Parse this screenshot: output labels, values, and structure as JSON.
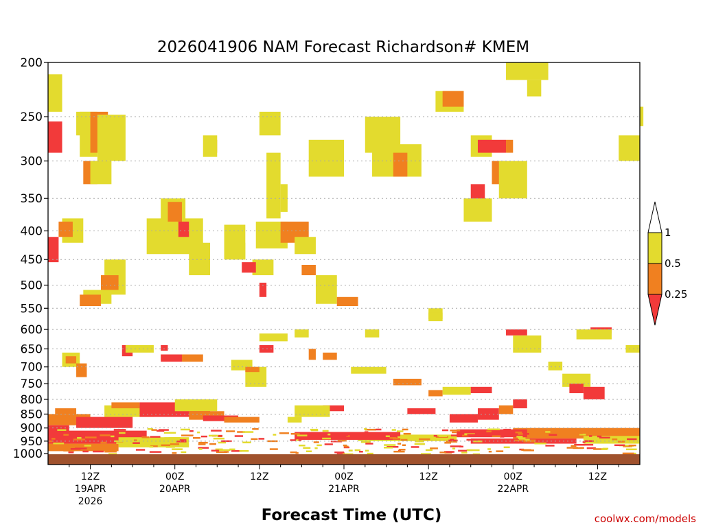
{
  "chart_data": {
    "type": "heatmap",
    "title": "2026041906 NAM Forecast Richardson# KMEM",
    "xlabel": "Forecast Time (UTC)",
    "ylabel": "",
    "watermark": "coolwx.com/models",
    "y_axis": {
      "scale": "log-pressure",
      "inverted": true,
      "range_hPa": [
        200,
        1000
      ],
      "ticks": [
        "200",
        "250",
        "300",
        "350",
        "400",
        "450",
        "500",
        "550",
        "600",
        "650",
        "700",
        "750",
        "800",
        "850",
        "900",
        "950",
        "1000"
      ]
    },
    "x_axis": {
      "range_hours": [
        0,
        84
      ],
      "ticks": [
        {
          "hour": 6,
          "lines": [
            "12Z",
            "19APR",
            "2026"
          ]
        },
        {
          "hour": 18,
          "lines": [
            "00Z",
            "20APR"
          ]
        },
        {
          "hour": 30,
          "lines": [
            "12Z"
          ]
        },
        {
          "hour": 42,
          "lines": [
            "00Z",
            "21APR"
          ]
        },
        {
          "hour": 54,
          "lines": [
            "12Z"
          ]
        },
        {
          "hour": 66,
          "lines": [
            "00Z",
            "22APR"
          ]
        },
        {
          "hour": 78,
          "lines": [
            "12Z"
          ]
        }
      ]
    },
    "color_scale": {
      "bins": [
        {
          "label": "< 0.25",
          "color": "#f23a3a"
        },
        {
          "label": "0.25 – 0.5",
          "color": "#f08020"
        },
        {
          "label": "0.5 – 1",
          "color": "#e3db2e"
        },
        {
          "label": "> 1",
          "color": "#ffffff"
        }
      ],
      "legend_labels": [
        "1",
        "0.5",
        "0.25"
      ]
    },
    "ground_color": "#a0522d",
    "regions": [
      {
        "h": [
          0,
          2
        ],
        "p": [
          255,
          290
        ],
        "c": "r"
      },
      {
        "h": [
          0,
          2
        ],
        "p": [
          210,
          245
        ],
        "c": "y"
      },
      {
        "h": [
          0,
          1.5
        ],
        "p": [
          410,
          455
        ],
        "c": "r"
      },
      {
        "h": [
          4,
          6
        ],
        "p": [
          245,
          270
        ],
        "c": "y"
      },
      {
        "h": [
          4.5,
          7
        ],
        "p": [
          245,
          295
        ],
        "c": "y"
      },
      {
        "h": [
          5,
          7
        ],
        "p": [
          300,
          330
        ],
        "c": "o"
      },
      {
        "h": [
          6,
          8.5
        ],
        "p": [
          245,
          290
        ],
        "c": "o"
      },
      {
        "h": [
          7,
          11
        ],
        "p": [
          248,
          300
        ],
        "c": "y"
      },
      {
        "h": [
          6,
          9
        ],
        "p": [
          300,
          330
        ],
        "c": "y"
      },
      {
        "h": [
          2,
          5
        ],
        "p": [
          380,
          420
        ],
        "c": "y"
      },
      {
        "h": [
          1.5,
          3.5
        ],
        "p": [
          385,
          410
        ],
        "c": "o"
      },
      {
        "h": [
          8,
          11
        ],
        "p": [
          450,
          520
        ],
        "c": "y"
      },
      {
        "h": [
          7.5,
          10
        ],
        "p": [
          480,
          510
        ],
        "c": "o"
      },
      {
        "h": [
          5,
          9
        ],
        "p": [
          510,
          540
        ],
        "c": "y"
      },
      {
        "h": [
          4.5,
          7.5
        ],
        "p": [
          520,
          545
        ],
        "c": "o"
      },
      {
        "h": [
          2,
          4.5
        ],
        "p": [
          660,
          700
        ],
        "c": "y"
      },
      {
        "h": [
          2.5,
          4
        ],
        "p": [
          670,
          690
        ],
        "c": "o"
      },
      {
        "h": [
          4,
          5.5
        ],
        "p": [
          690,
          730
        ],
        "c": "o"
      },
      {
        "h": [
          10.5,
          12
        ],
        "p": [
          640,
          670
        ],
        "c": "r"
      },
      {
        "h": [
          11,
          15
        ],
        "p": [
          640,
          660
        ],
        "c": "y"
      },
      {
        "h": [
          16,
          17
        ],
        "p": [
          640,
          655
        ],
        "c": "r"
      },
      {
        "h": [
          16,
          21
        ],
        "p": [
          665,
          680
        ],
        "c": "y"
      },
      {
        "h": [
          16,
          19.5
        ],
        "p": [
          665,
          685
        ],
        "c": "r"
      },
      {
        "h": [
          19,
          22
        ],
        "p": [
          665,
          685
        ],
        "c": "o"
      },
      {
        "h": [
          14,
          22
        ],
        "p": [
          380,
          440
        ],
        "c": "y"
      },
      {
        "h": [
          16,
          19.5
        ],
        "p": [
          350,
          400
        ],
        "c": "y"
      },
      {
        "h": [
          17,
          19
        ],
        "p": [
          355,
          385
        ],
        "c": "o"
      },
      {
        "h": [
          18.5,
          20
        ],
        "p": [
          385,
          410
        ],
        "c": "r"
      },
      {
        "h": [
          20,
          23
        ],
        "p": [
          420,
          480
        ],
        "c": "y"
      },
      {
        "h": [
          23,
          24
        ],
        "p": [
          275,
          290
        ],
        "c": "o"
      },
      {
        "h": [
          22,
          24
        ],
        "p": [
          270,
          295
        ],
        "c": "y"
      },
      {
        "h": [
          25,
          28
        ],
        "p": [
          390,
          450
        ],
        "c": "y"
      },
      {
        "h": [
          26,
          28
        ],
        "p": [
          420,
          450
        ],
        "c": "y"
      },
      {
        "h": [
          29,
          32
        ],
        "p": [
          450,
          480
        ],
        "c": "y"
      },
      {
        "h": [
          27.5,
          29.5
        ],
        "p": [
          455,
          475
        ],
        "c": "r"
      },
      {
        "h": [
          30,
          31
        ],
        "p": [
          495,
          525
        ],
        "c": "r"
      },
      {
        "h": [
          29.5,
          34
        ],
        "p": [
          385,
          430
        ],
        "c": "y"
      },
      {
        "h": [
          33,
          37
        ],
        "p": [
          385,
          420
        ],
        "c": "o"
      },
      {
        "h": [
          35,
          38
        ],
        "p": [
          410,
          440
        ],
        "c": "y"
      },
      {
        "h": [
          36,
          38
        ],
        "p": [
          460,
          480
        ],
        "c": "o"
      },
      {
        "h": [
          38,
          41
        ],
        "p": [
          480,
          540
        ],
        "c": "y"
      },
      {
        "h": [
          41,
          44
        ],
        "p": [
          525,
          545
        ],
        "c": "o"
      },
      {
        "h": [
          30,
          33
        ],
        "p": [
          245,
          270
        ],
        "c": "y"
      },
      {
        "h": [
          31,
          33
        ],
        "p": [
          290,
          380
        ],
        "c": "y"
      },
      {
        "h": [
          33,
          34
        ],
        "p": [
          330,
          370
        ],
        "c": "y"
      },
      {
        "h": [
          37,
          42
        ],
        "p": [
          275,
          320
        ],
        "c": "y"
      },
      {
        "h": [
          45,
          50
        ],
        "p": [
          250,
          290
        ],
        "c": "y"
      },
      {
        "h": [
          46,
          53
        ],
        "p": [
          280,
          320
        ],
        "c": "y"
      },
      {
        "h": [
          49,
          51
        ],
        "p": [
          290,
          320
        ],
        "c": "o"
      },
      {
        "h": [
          55,
          59
        ],
        "p": [
          225,
          245
        ],
        "c": "y"
      },
      {
        "h": [
          56,
          59
        ],
        "p": [
          225,
          240
        ],
        "c": "o"
      },
      {
        "h": [
          60,
          63
        ],
        "p": [
          270,
          295
        ],
        "c": "y"
      },
      {
        "h": [
          61,
          65
        ],
        "p": [
          275,
          290
        ],
        "c": "r"
      },
      {
        "h": [
          65,
          66
        ],
        "p": [
          275,
          290
        ],
        "c": "o"
      },
      {
        "h": [
          60,
          62
        ],
        "p": [
          330,
          370
        ],
        "c": "r"
      },
      {
        "h": [
          59,
          63
        ],
        "p": [
          350,
          385
        ],
        "c": "y"
      },
      {
        "h": [
          63,
          65
        ],
        "p": [
          300,
          330
        ],
        "c": "o"
      },
      {
        "h": [
          64,
          68
        ],
        "p": [
          300,
          350
        ],
        "c": "y"
      },
      {
        "h": [
          65,
          71
        ],
        "p": [
          200,
          215
        ],
        "c": "y"
      },
      {
        "h": [
          68,
          70
        ],
        "p": [
          215,
          230
        ],
        "c": "y"
      },
      {
        "h": [
          82,
          84
        ],
        "p": [
          280,
          295
        ],
        "c": "o"
      },
      {
        "h": [
          81,
          84
        ],
        "p": [
          270,
          300
        ],
        "c": "y"
      },
      {
        "h": [
          84,
          84
        ],
        "p": [
          240,
          260
        ],
        "c": "y"
      },
      {
        "h": [
          65,
          68
        ],
        "p": [
          600,
          615
        ],
        "c": "r"
      },
      {
        "h": [
          66,
          70
        ],
        "p": [
          615,
          660
        ],
        "c": "y"
      },
      {
        "h": [
          71,
          73
        ],
        "p": [
          685,
          710
        ],
        "c": "y"
      },
      {
        "h": [
          73,
          77
        ],
        "p": [
          720,
          760
        ],
        "c": "y"
      },
      {
        "h": [
          74,
          76
        ],
        "p": [
          750,
          780
        ],
        "c": "r"
      },
      {
        "h": [
          76,
          79
        ],
        "p": [
          760,
          800
        ],
        "c": "r"
      },
      {
        "h": [
          77,
          80
        ],
        "p": [
          595,
          610
        ],
        "c": "r"
      },
      {
        "h": [
          75,
          80
        ],
        "p": [
          600,
          625
        ],
        "c": "y"
      },
      {
        "h": [
          82,
          84
        ],
        "p": [
          640,
          660
        ],
        "c": "y"
      },
      {
        "h": [
          43,
          48
        ],
        "p": [
          700,
          720
        ],
        "c": "y"
      },
      {
        "h": [
          49,
          53
        ],
        "p": [
          735,
          755
        ],
        "c": "o"
      },
      {
        "h": [
          54,
          56
        ],
        "p": [
          770,
          790
        ],
        "c": "o"
      },
      {
        "h": [
          56,
          60
        ],
        "p": [
          760,
          785
        ],
        "c": "y"
      },
      {
        "h": [
          60,
          63
        ],
        "p": [
          760,
          780
        ],
        "c": "r"
      },
      {
        "h": [
          54,
          56
        ],
        "p": [
          550,
          575
        ],
        "c": "y"
      },
      {
        "h": [
          39,
          42
        ],
        "p": [
          820,
          840
        ],
        "c": "r"
      },
      {
        "h": [
          35,
          40
        ],
        "p": [
          820,
          860
        ],
        "c": "y"
      },
      {
        "h": [
          34,
          36
        ],
        "p": [
          860,
          880
        ],
        "c": "y"
      },
      {
        "h": [
          51,
          55
        ],
        "p": [
          830,
          850
        ],
        "c": "r"
      },
      {
        "h": [
          57,
          61
        ],
        "p": [
          850,
          880
        ],
        "c": "r"
      },
      {
        "h": [
          61,
          64
        ],
        "p": [
          830,
          870
        ],
        "c": "r"
      },
      {
        "h": [
          64,
          66
        ],
        "p": [
          820,
          850
        ],
        "c": "o"
      },
      {
        "h": [
          66,
          68
        ],
        "p": [
          800,
          830
        ],
        "c": "r"
      },
      {
        "h": [
          28,
          31
        ],
        "p": [
          700,
          760
        ],
        "c": "y"
      },
      {
        "h": [
          26,
          29
        ],
        "p": [
          680,
          710
        ],
        "c": "y"
      },
      {
        "h": [
          28,
          30
        ],
        "p": [
          700,
          715
        ],
        "c": "o"
      },
      {
        "h": [
          30,
          32
        ],
        "p": [
          640,
          660
        ],
        "c": "r"
      },
      {
        "h": [
          30,
          34
        ],
        "p": [
          610,
          630
        ],
        "c": "y"
      },
      {
        "h": [
          35,
          37
        ],
        "p": [
          600,
          620
        ],
        "c": "y"
      },
      {
        "h": [
          37,
          38
        ],
        "p": [
          650,
          680
        ],
        "c": "o"
      },
      {
        "h": [
          39,
          41
        ],
        "p": [
          660,
          680
        ],
        "c": "o"
      },
      {
        "h": [
          45,
          47
        ],
        "p": [
          600,
          620
        ],
        "c": "y"
      },
      {
        "h": [
          54,
          56
        ],
        "p": [
          560,
          580
        ],
        "c": "y"
      },
      {
        "h": [
          8,
          15
        ],
        "p": [
          820,
          860
        ],
        "c": "y"
      },
      {
        "h": [
          9,
          13
        ],
        "p": [
          810,
          830
        ],
        "c": "o"
      },
      {
        "h": [
          13,
          23
        ],
        "p": [
          810,
          860
        ],
        "c": "r"
      },
      {
        "h": [
          18,
          24
        ],
        "p": [
          800,
          840
        ],
        "c": "y"
      },
      {
        "h": [
          20,
          25
        ],
        "p": [
          840,
          870
        ],
        "c": "o"
      },
      {
        "h": [
          22,
          27
        ],
        "p": [
          855,
          875
        ],
        "c": "r"
      },
      {
        "h": [
          25,
          30
        ],
        "p": [
          860,
          880
        ],
        "c": "o"
      },
      {
        "h": [
          0,
          6
        ],
        "p": [
          850,
          890
        ],
        "c": "o"
      },
      {
        "h": [
          4,
          12
        ],
        "p": [
          860,
          900
        ],
        "c": "r"
      },
      {
        "h": [
          1,
          4
        ],
        "p": [
          830,
          850
        ],
        "c": "o"
      },
      {
        "h": [
          0,
          3
        ],
        "p": [
          890,
          915
        ],
        "c": "r"
      },
      {
        "h": [
          66,
          84
        ],
        "p": [
          900,
          940
        ],
        "c": "o"
      },
      {
        "h": [
          60,
          75
        ],
        "p": [
          940,
          960
        ],
        "c": "r"
      },
      {
        "h": [
          76,
          84
        ],
        "p": [
          930,
          960
        ],
        "c": "y"
      },
      {
        "h": [
          58,
          68
        ],
        "p": [
          905,
          935
        ],
        "c": "r"
      },
      {
        "h": [
          44,
          58
        ],
        "p": [
          925,
          950
        ],
        "c": "y"
      },
      {
        "h": [
          35,
          50
        ],
        "p": [
          915,
          945
        ],
        "c": "r"
      },
      {
        "h": [
          0,
          14
        ],
        "p": [
          910,
          960
        ],
        "c": "r"
      },
      {
        "h": [
          10,
          20
        ],
        "p": [
          935,
          975
        ],
        "c": "y"
      },
      {
        "h": [
          0,
          10
        ],
        "p": [
          960,
          990
        ],
        "c": "o"
      }
    ],
    "speckle": {
      "h": [
        0,
        84
      ],
      "p": [
        900,
        1000
      ],
      "classes": [
        "r",
        "o",
        "y"
      ]
    }
  }
}
